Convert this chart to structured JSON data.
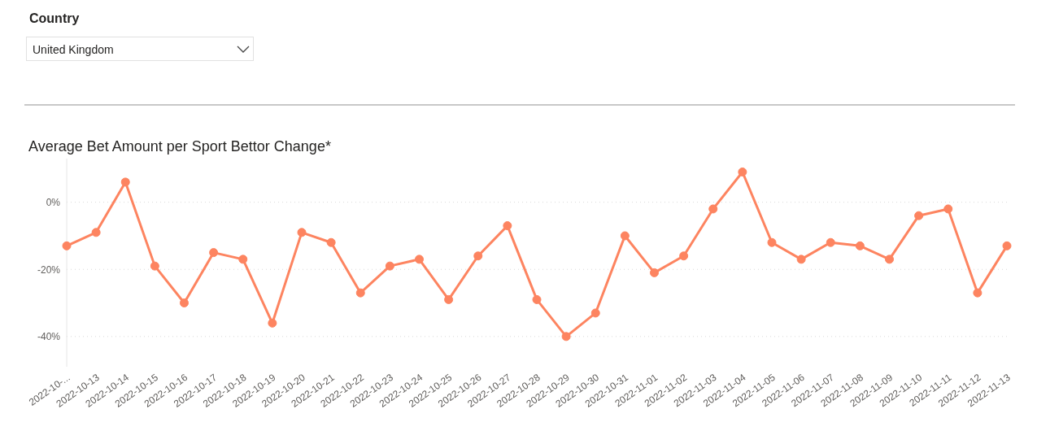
{
  "chart_data": {
    "type": "line",
    "title": "Average Bet Amount per Sport Bettor Change*",
    "annotations": [
      "Country",
      "United Kingdom"
    ],
    "categories": [
      "2022-10-...",
      "2022-10-13",
      "2022-10-14",
      "2022-10-15",
      "2022-10-16",
      "2022-10-17",
      "2022-10-18",
      "2022-10-19",
      "2022-10-20",
      "2022-10-21",
      "2022-10-22",
      "2022-10-23",
      "2022-10-24",
      "2022-10-25",
      "2022-10-26",
      "2022-10-27",
      "2022-10-28",
      "2022-10-29",
      "2022-10-30",
      "2022-10-31",
      "2022-11-01",
      "2022-11-02",
      "2022-11-03",
      "2022-11-04",
      "2022-11-05",
      "2022-11-06",
      "2022-11-07",
      "2022-11-08",
      "2022-11-09",
      "2022-11-10",
      "2022-11-11",
      "2022-11-12",
      "2022-11-13"
    ],
    "series": [
      {
        "color": "#fd8460",
        "values": [
          -13,
          -9,
          6,
          -19,
          -30,
          -15,
          -17,
          -36,
          -9,
          -12,
          -27,
          -19,
          -17,
          -29,
          -16,
          -7,
          -29,
          -40,
          -33,
          -10,
          -21,
          -16,
          -2,
          9,
          -12,
          -17,
          -12,
          -13,
          -17,
          -4,
          -2,
          -27,
          -13
        ]
      }
    ],
    "ylim": [
      -49,
      13
    ],
    "yticks": [
      {
        "value": -40,
        "label": "-40%"
      },
      {
        "value": -20,
        "label": "-20%"
      },
      {
        "value": 0,
        "label": "0%"
      }
    ],
    "grid": "y",
    "legend": false,
    "marker": "circle",
    "line_style": "solid"
  }
}
